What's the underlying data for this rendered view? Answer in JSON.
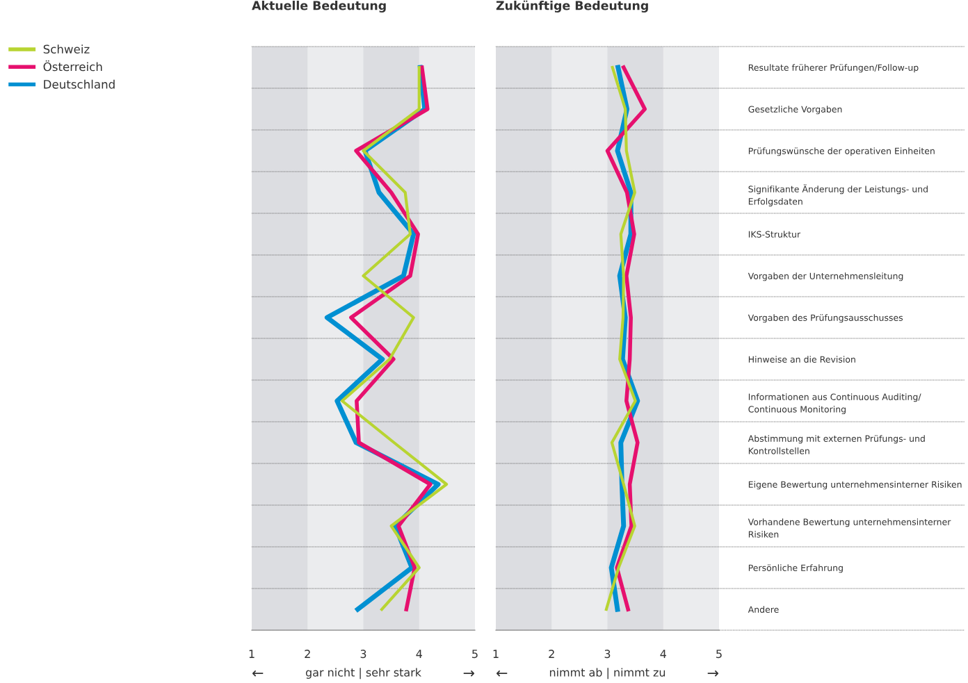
{
  "chart_data": [
    {
      "type": "line",
      "orientation": "horizontal",
      "title": "Aktuelle Bedeutung",
      "xlabel": "gar nicht | sehr stark",
      "annotations": [
        "←",
        "→"
      ],
      "categories": [
        null,
        null,
        null,
        null,
        null,
        null,
        null,
        null,
        null,
        null,
        null,
        null,
        null,
        null
      ],
      "series": [
        {
          "name": "Schweiz",
          "color": "#b8d432",
          "values": [
            4.0,
            4.0,
            3.0,
            3.75,
            3.84,
            3.0,
            3.9,
            3.47,
            2.62,
            3.55,
            4.49,
            3.5,
            4.0,
            3.33
          ]
        },
        {
          "name": "Österreich",
          "color": "#e6106e",
          "values": [
            4.05,
            4.15,
            2.87,
            3.5,
            3.98,
            3.84,
            2.78,
            3.54,
            2.88,
            2.92,
            4.2,
            3.63,
            3.92,
            3.77
          ]
        },
        {
          "name": "Deutschland",
          "color": "#0090d2",
          "values": [
            4.02,
            4.1,
            3.03,
            3.28,
            3.9,
            3.72,
            2.35,
            3.34,
            2.53,
            2.87,
            4.34,
            3.57,
            3.87,
            2.9
          ]
        }
      ],
      "xlim": [
        1,
        5
      ],
      "xticks": [
        1,
        2,
        3,
        4,
        5
      ],
      "tick_labels": "x",
      "legend": "left",
      "marker": "none",
      "line_style": "solid",
      "bands": [
        {
          "axis": "x",
          "from": 1,
          "to": 2,
          "color": "#dcdde1"
        },
        {
          "axis": "x",
          "from": 3,
          "to": 4,
          "color": "#dcdde1"
        }
      ]
    },
    {
      "type": "line",
      "orientation": "horizontal",
      "title": "Zukünftige Bedeutung",
      "xlabel": "nimmt ab | nimmt zu",
      "annotations": [
        "←",
        "→"
      ],
      "categories": [
        "Resultate früherer Prüfungen/Follow-up",
        "Gesetzliche Vorgaben",
        "Prüfungswünsche der operativen Einheiten",
        "Signifikante Änderung der Leistungs- und\nErfolgsdaten",
        "IKS-Struktur",
        "Vorgaben der Unternehmensleitung",
        "Vorgaben des Prüfungsausschusses",
        "Hinweise an die Revision",
        "Informationen aus Continuous Auditing/\nContinuous Monitoring",
        "Abstimmung mit externen Prüfungs- und\nKontrollstellen",
        "Eigene Bewertung unternehmensinterner Risiken",
        "Vorhandene Bewertung unternehmensinterner\nRisiken",
        "Persönliche Erfahrung",
        "Andere"
      ],
      "series": [
        {
          "color": "#b8d432",
          "values": [
            3.09,
            3.32,
            3.34,
            3.49,
            3.24,
            3.29,
            3.28,
            3.22,
            3.5,
            3.08,
            3.29,
            3.49,
            3.2,
            2.98
          ]
        },
        {
          "color": "#e6106e",
          "values": [
            3.29,
            3.67,
            3.0,
            3.35,
            3.48,
            3.34,
            3.42,
            3.4,
            3.34,
            3.54,
            3.4,
            3.43,
            3.17,
            3.37
          ]
        },
        {
          "color": "#0090d2",
          "values": [
            3.19,
            3.35,
            3.18,
            3.42,
            3.42,
            3.22,
            3.32,
            3.27,
            3.54,
            3.24,
            3.26,
            3.29,
            3.07,
            3.18
          ]
        }
      ],
      "xlim": [
        1,
        5
      ],
      "xticks": [
        1,
        2,
        3,
        4,
        5
      ],
      "marker": "none",
      "line_style": "solid",
      "bands": [
        {
          "axis": "x",
          "from": 1,
          "to": 2,
          "color": "#dcdde1"
        },
        {
          "axis": "x",
          "from": 3,
          "to": 4,
          "color": "#dcdde1"
        }
      ]
    }
  ]
}
